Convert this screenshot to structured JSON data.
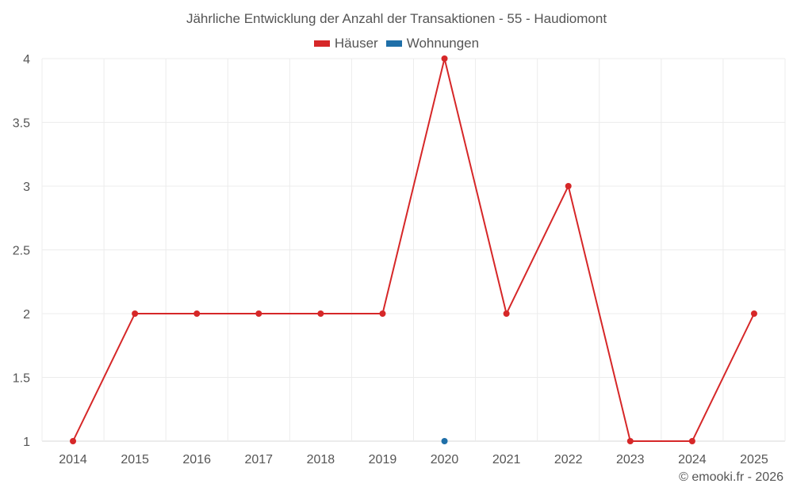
{
  "header": {
    "title": "Jährliche Entwicklung der Anzahl der Transaktionen - 55 - Haudiomont"
  },
  "legend": [
    {
      "label": "Häuser",
      "color": "#d62728"
    },
    {
      "label": "Wohnungen",
      "color": "#1f6fa8"
    }
  ],
  "footer": {
    "credit": "© emooki.fr - 2026"
  },
  "chart_data": {
    "type": "line",
    "title": "Jährliche Entwicklung der Anzahl der Transaktionen - 55 - Haudiomont",
    "xlabel": "",
    "ylabel": "",
    "categories": [
      "2014",
      "2015",
      "2016",
      "2017",
      "2018",
      "2019",
      "2020",
      "2021",
      "2022",
      "2023",
      "2024",
      "2025"
    ],
    "series": [
      {
        "name": "Häuser",
        "color": "#d62728",
        "values": [
          1,
          2,
          2,
          2,
          2,
          2,
          4,
          2,
          3,
          1,
          1,
          2
        ]
      },
      {
        "name": "Wohnungen",
        "color": "#1f6fa8",
        "values": [
          null,
          null,
          null,
          null,
          null,
          null,
          1,
          null,
          null,
          null,
          null,
          null
        ]
      }
    ],
    "ylim": [
      1,
      4
    ],
    "yticks": [
      "1",
      "1.5",
      "2",
      "2.5",
      "3",
      "3.5",
      "4"
    ],
    "grid": true,
    "legend_position": "top"
  }
}
